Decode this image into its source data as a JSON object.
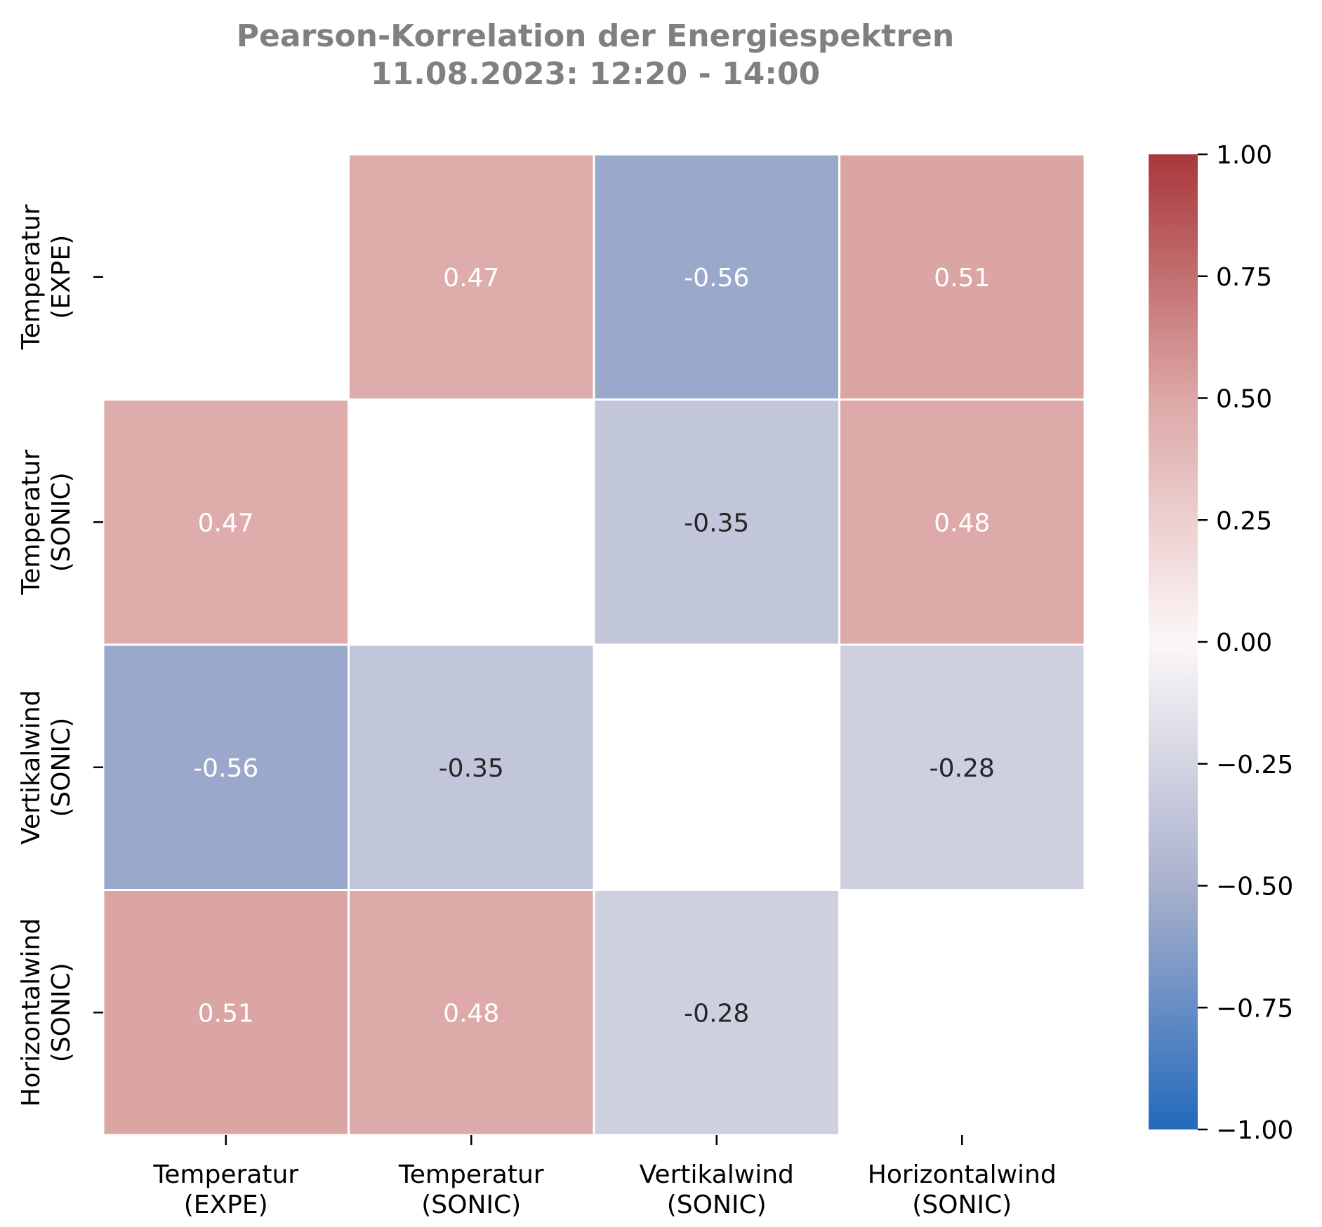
{
  "chart_data": {
    "type": "heatmap",
    "title_lines": [
      "Pearson-Korrelation der Energiespektren",
      "11.08.2023:  12:20 -  14:00"
    ],
    "rows": [
      [
        "Temperatur",
        "(EXPE)"
      ],
      [
        "Temperatur",
        "(SONIC)"
      ],
      [
        "Vertikalwind",
        "(SONIC)"
      ],
      [
        "Horizontalwind",
        "(SONIC)"
      ]
    ],
    "columns": [
      [
        "Temperatur",
        "(EXPE)"
      ],
      [
        "Temperatur",
        "(SONIC)"
      ],
      [
        "Vertikalwind",
        "(SONIC)"
      ],
      [
        "Horizontalwind",
        "(SONIC)"
      ]
    ],
    "values": [
      [
        null,
        0.47,
        -0.56,
        0.51
      ],
      [
        0.47,
        null,
        -0.35,
        0.48
      ],
      [
        -0.56,
        -0.35,
        null,
        -0.28
      ],
      [
        0.51,
        0.48,
        -0.28,
        null
      ]
    ],
    "value_labels": [
      [
        null,
        "0.47",
        "-0.56",
        "0.51"
      ],
      [
        "0.47",
        null,
        "-0.35",
        "0.48"
      ],
      [
        "-0.56",
        "-0.35",
        null,
        "-0.28"
      ],
      [
        "0.51",
        "0.48",
        "-0.28",
        null
      ]
    ],
    "diagonal_masked": true,
    "colorbar": {
      "min": -1.0,
      "max": 1.0,
      "ticks": [
        1.0,
        0.75,
        0.5,
        0.25,
        0.0,
        -0.25,
        -0.5,
        -0.75,
        -1.0
      ],
      "tick_labels": [
        "1.00",
        "0.75",
        "0.50",
        "0.25",
        "0.00",
        "−0.25",
        "−0.50",
        "−0.75",
        "−1.00"
      ],
      "colormap": "vlag",
      "color_stops": [
        "#2369bd",
        "#a9b1cd",
        "#fcf7f7",
        "#dca7a6",
        "#a9373b"
      ]
    },
    "cell_text_colors": {
      "light": "#ffffff",
      "dark": "#262626"
    },
    "grid": false,
    "legend": "colorbar-right"
  }
}
